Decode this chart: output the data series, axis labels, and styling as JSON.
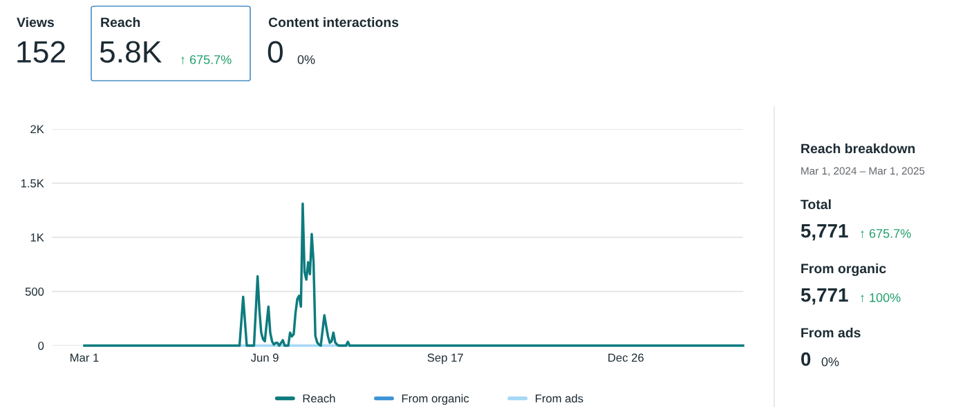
{
  "chart_data": [
    {
      "type": "other",
      "annotations": [
        "Views",
        "152",
        "Reach",
        "5.8K",
        "↑ 675.7%",
        "Content interactions",
        "0",
        "0%"
      ]
    },
    {
      "type": "line",
      "x": [
        "2024-03-01",
        "2024-05-26",
        "2024-05-28",
        "2024-05-30",
        "2024-06-03",
        "2024-06-05",
        "2024-06-06",
        "2024-06-07",
        "2024-06-08",
        "2024-06-09",
        "2024-06-10",
        "2024-06-11",
        "2024-06-12",
        "2024-06-13",
        "2024-06-14",
        "2024-06-15",
        "2024-06-16",
        "2024-06-17",
        "2024-06-19",
        "2024-06-20",
        "2024-06-22",
        "2024-06-23",
        "2024-06-24",
        "2024-06-25",
        "2024-06-26",
        "2024-06-27",
        "2024-06-28",
        "2024-06-29",
        "2024-06-30",
        "2024-07-01",
        "2024-07-02",
        "2024-07-03",
        "2024-07-04",
        "2024-07-05",
        "2024-07-06",
        "2024-07-07",
        "2024-07-08",
        "2024-07-09",
        "2024-07-10",
        "2024-07-12",
        "2024-07-13",
        "2024-07-14",
        "2024-07-15",
        "2024-07-16",
        "2024-07-17",
        "2024-07-18",
        "2024-07-19",
        "2024-07-20",
        "2024-07-24",
        "2024-07-25",
        "2024-07-26",
        "2025-03-01"
      ],
      "series": [
        {
          "name": "From ads",
          "color": "#a6d8f5",
          "x": [
            "2024-05-26",
            "2024-07-26"
          ],
          "values": [
            0,
            0
          ]
        },
        {
          "name": "From organic",
          "color": "#3b94d9",
          "values": [
            null,
            null,
            null,
            null,
            null,
            null,
            null,
            null,
            null,
            null,
            null,
            null,
            null,
            null,
            null,
            null,
            null,
            null,
            null,
            null,
            null,
            null,
            null,
            null,
            null,
            null,
            null,
            null,
            null,
            null,
            null,
            null,
            null,
            null,
            null,
            null,
            null,
            null,
            null,
            null,
            null,
            null,
            null,
            null,
            null,
            null,
            null,
            null,
            null,
            null,
            null,
            null
          ]
        },
        {
          "name": "Reach",
          "color": "#0e7b7e",
          "values": [
            0,
            0,
            450,
            0,
            0,
            640,
            330,
            120,
            60,
            40,
            200,
            360,
            120,
            40,
            10,
            25,
            25,
            0,
            50,
            0,
            0,
            120,
            85,
            105,
            300,
            430,
            460,
            360,
            1310,
            680,
            610,
            770,
            660,
            1030,
            770,
            90,
            30,
            10,
            0,
            280,
            180,
            85,
            25,
            40,
            120,
            30,
            10,
            0,
            0,
            35,
            0,
            0
          ]
        }
      ],
      "xlim": [
        "2024-02-12",
        "2025-03-01"
      ],
      "xticks": [
        {
          "value": "2024-03-01",
          "label": "Mar 1"
        },
        {
          "value": "2024-06-09",
          "label": "Jun 9"
        },
        {
          "value": "2024-09-17",
          "label": "Sep 17"
        },
        {
          "value": "2024-12-26",
          "label": "Dec 26"
        }
      ],
      "ylim": [
        0,
        2000
      ],
      "yticks": [
        0,
        500,
        {
          "value": 1000,
          "label": "1K"
        },
        {
          "value": 1500,
          "label": "1.5K"
        },
        {
          "value": 2000,
          "label": "2K"
        }
      ],
      "grid": "y",
      "legend": "bottom",
      "marker": "none",
      "line_style": "solid"
    },
    {
      "type": "other",
      "annotations": [
        "Reach breakdown",
        "Mar 1, 2024 – Mar 1, 2025",
        "Total",
        "5,771",
        "↑ 675.7%",
        "From organic",
        "5,771",
        "↑ 100%",
        "From ads",
        "0",
        "0%"
      ]
    }
  ]
}
